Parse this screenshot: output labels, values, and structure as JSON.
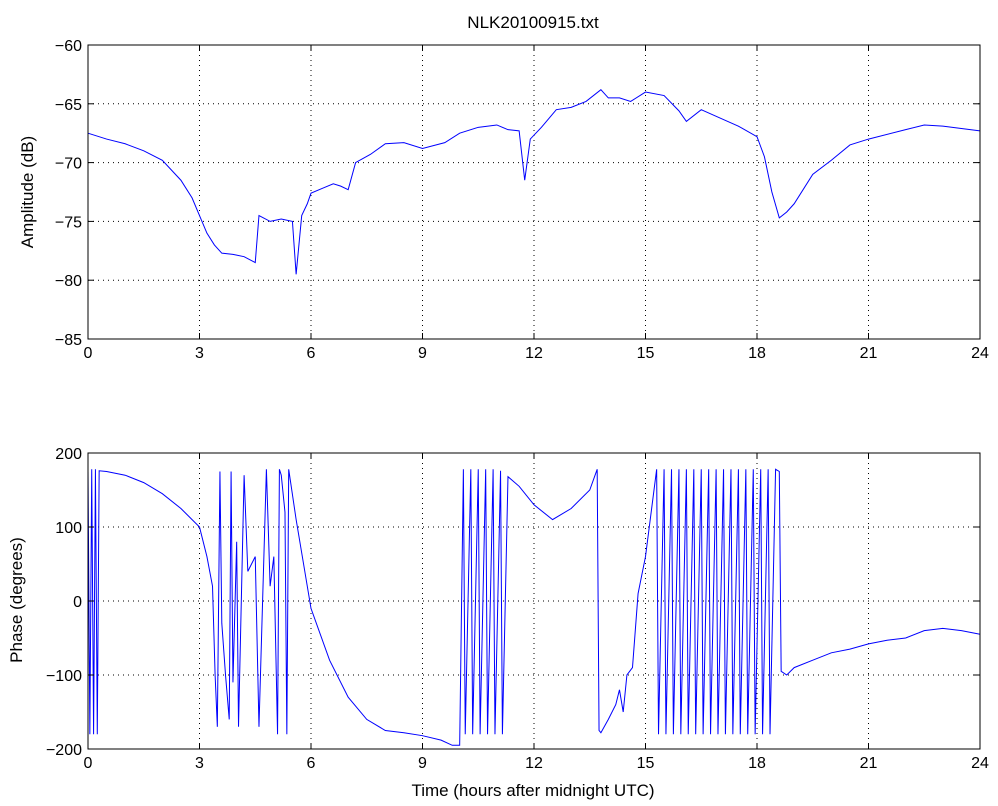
{
  "chart_data": [
    {
      "type": "line",
      "title": "NLK20100915.txt",
      "xlabel": "",
      "ylabel": "Amplitude (dB)",
      "xlim": [
        0,
        24
      ],
      "ylim": [
        -85,
        -60
      ],
      "xticks": [
        0,
        3,
        6,
        9,
        12,
        15,
        18,
        21,
        24
      ],
      "xtick_labels": [
        "0",
        "3",
        "6",
        "9",
        "12",
        "15",
        "18",
        "21",
        "24"
      ],
      "yticks": [
        -85,
        -80,
        -75,
        -70,
        -65,
        -60
      ],
      "ytick_labels": [
        "−85",
        "−80",
        "−75",
        "−70",
        "−65",
        "−60"
      ],
      "grid": true,
      "series_color": "#0000ff",
      "series": [
        {
          "x": [
            0,
            0.5,
            1,
            1.5,
            2,
            2.5,
            2.8,
            3.0,
            3.2,
            3.4,
            3.6,
            3.9,
            4.2,
            4.5,
            4.55,
            4.6,
            4.9,
            5.2,
            5.5,
            5.6,
            5.75,
            5.9,
            6.0,
            6.3,
            6.6,
            6.8,
            7.0,
            7.2,
            7.6,
            8.0,
            8.5,
            9.0,
            9.6,
            10.0,
            10.5,
            11.0,
            11.3,
            11.6,
            11.75,
            11.9,
            12.2,
            12.6,
            13.0,
            13.4,
            13.8,
            14.0,
            14.3,
            14.6,
            15.0,
            15.5,
            15.9,
            16.1,
            16.5,
            17.0,
            17.5,
            18.0,
            18.2,
            18.4,
            18.6,
            18.8,
            19.0,
            19.5,
            20.0,
            20.5,
            21.0,
            22.0,
            22.5,
            23.0,
            24.0
          ],
          "values": [
            -67.5,
            -68.0,
            -68.4,
            -69.0,
            -69.8,
            -71.5,
            -73.0,
            -74.5,
            -76.0,
            -77.0,
            -77.7,
            -77.8,
            -78.0,
            -78.5,
            -76.5,
            -74.5,
            -75.0,
            -74.8,
            -75.0,
            -79.5,
            -74.5,
            -73.5,
            -72.6,
            -72.2,
            -71.8,
            -72.0,
            -72.3,
            -70.0,
            -69.3,
            -68.4,
            -68.3,
            -68.8,
            -68.3,
            -67.5,
            -67.0,
            -66.8,
            -67.2,
            -67.3,
            -71.5,
            -68.0,
            -67.0,
            -65.5,
            -65.3,
            -64.8,
            -63.8,
            -64.5,
            -64.5,
            -64.8,
            -64.0,
            -64.3,
            -65.6,
            -66.5,
            -65.5,
            -66.2,
            -66.9,
            -67.8,
            -69.5,
            -72.5,
            -74.7,
            -74.2,
            -73.5,
            -71.0,
            -69.8,
            -68.5,
            -68.0,
            -67.2,
            -66.8,
            -66.9,
            -67.3
          ]
        }
      ]
    },
    {
      "type": "line",
      "title": "",
      "xlabel": "Time (hours after midnight UTC)",
      "ylabel": "Phase (degrees)",
      "xlim": [
        0,
        24
      ],
      "ylim": [
        -200,
        200
      ],
      "xticks": [
        0,
        3,
        6,
        9,
        12,
        15,
        18,
        21,
        24
      ],
      "xtick_labels": [
        "0",
        "3",
        "6",
        "9",
        "12",
        "15",
        "18",
        "21",
        "24"
      ],
      "yticks": [
        -200,
        -100,
        0,
        100,
        200
      ],
      "ytick_labels": [
        "−200",
        "−100",
        "0",
        "100",
        "200"
      ],
      "grid": true,
      "series_color": "#0000ff",
      "series": [
        {
          "x": [
            0,
            0.05,
            0.1,
            0.15,
            0.2,
            0.25,
            0.3,
            0.5,
            1.0,
            1.5,
            2.0,
            2.5,
            3.0,
            3.2,
            3.35,
            3.42,
            3.48,
            3.55,
            3.6,
            3.7,
            3.8,
            3.85,
            3.9,
            4.0,
            4.05,
            4.2,
            4.3,
            4.5,
            4.6,
            4.8,
            4.9,
            5.0,
            5.1,
            5.15,
            5.2,
            5.3,
            5.35,
            5.4,
            5.6,
            6.0,
            6.5,
            7.0,
            7.5,
            8.0,
            8.5,
            9.0,
            9.5,
            9.8,
            10.0,
            10.1,
            10.15,
            10.3,
            10.35,
            10.5,
            10.55,
            10.7,
            10.75,
            10.9,
            10.95,
            11.1,
            11.15,
            11.3,
            11.6,
            12.0,
            12.5,
            13.0,
            13.5,
            13.7,
            13.75,
            13.8,
            14.0,
            14.2,
            14.3,
            14.4,
            14.5,
            14.65,
            14.8,
            15.0,
            15.3,
            15.35,
            15.5,
            15.55,
            15.7,
            15.75,
            15.9,
            15.95,
            16.1,
            16.15,
            16.3,
            16.35,
            16.5,
            16.55,
            16.7,
            16.75,
            16.9,
            16.95,
            17.1,
            17.15,
            17.3,
            17.35,
            17.5,
            17.55,
            17.7,
            17.75,
            17.9,
            17.95,
            18.1,
            18.15,
            18.3,
            18.35,
            18.5,
            18.6,
            18.65,
            18.8,
            19.0,
            19.5,
            20.0,
            20.5,
            21.0,
            21.5,
            22.0,
            22.5,
            23.0,
            23.5,
            24.0
          ],
          "values": [
            178,
            -180,
            178,
            -180,
            178,
            -180,
            176,
            175,
            170,
            160,
            145,
            125,
            100,
            60,
            20,
            -100,
            -170,
            175,
            -30,
            -100,
            -160,
            175,
            -110,
            80,
            -170,
            170,
            40,
            60,
            -170,
            178,
            20,
            60,
            -180,
            178,
            170,
            120,
            -180,
            178,
            110,
            -10,
            -80,
            -130,
            -160,
            -175,
            -178,
            -182,
            -188,
            -195,
            -195,
            178,
            -180,
            178,
            -180,
            178,
            -180,
            178,
            -180,
            178,
            -180,
            176,
            -180,
            168,
            155,
            130,
            110,
            125,
            150,
            178,
            -175,
            -178,
            -160,
            -140,
            -120,
            -150,
            -100,
            -90,
            10,
            60,
            178,
            -180,
            178,
            -180,
            178,
            -180,
            178,
            -180,
            178,
            -180,
            178,
            -180,
            178,
            -180,
            178,
            -180,
            178,
            -180,
            178,
            -180,
            178,
            -180,
            178,
            -180,
            178,
            -180,
            178,
            -180,
            178,
            -180,
            178,
            -180,
            178,
            175,
            -95,
            -100,
            -90,
            -80,
            -70,
            -65,
            -58,
            -53,
            -50,
            -40,
            -37,
            -40,
            -45
          ]
        }
      ]
    }
  ]
}
